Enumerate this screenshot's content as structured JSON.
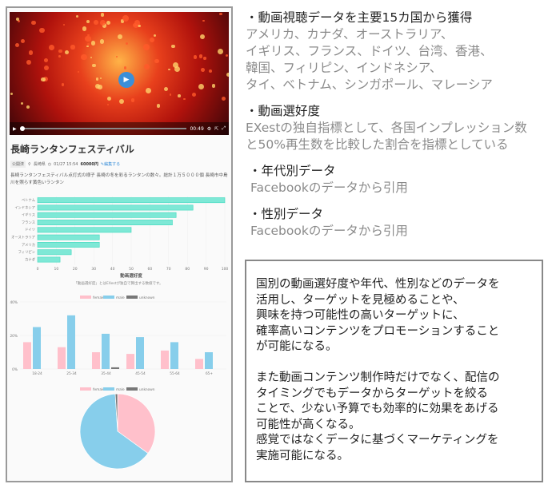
{
  "video": {
    "time": "00:49",
    "play_icon": "play-icon",
    "settings_icon": "gear-icon",
    "share_icon": "external-link-icon",
    "fullscreen_icon": "fullscreen-icon"
  },
  "post": {
    "title": "長崎ランタンフェスティバル",
    "status": "公開済",
    "location": "長崎県",
    "datetime": "01/27 15:54",
    "price": "60000円",
    "edit": "編集する",
    "description": "長崎ランタンフェスティバル点灯式の様子 長崎の冬を彩るランタンの数々。総計１万５０００個 長崎市中島川を照らす黄色いランタン"
  },
  "colors": {
    "preference": "#7ee8d6",
    "female": "#ffc0cb",
    "male": "#87ceeb",
    "unknown": "#777777"
  },
  "chart_data": [
    {
      "type": "bar",
      "orientation": "horizontal",
      "categories": [
        "ベトナム",
        "インドネシア",
        "イギリス",
        "フランス",
        "ドイツ",
        "オーストラリア",
        "アメリカ",
        "フィリピン",
        "カナダ"
      ],
      "values": [
        100,
        83,
        74,
        72,
        50,
        33,
        33,
        18,
        12
      ],
      "xlabel": "動画選好度",
      "xlim": [
        0,
        100
      ],
      "xticks": [
        0,
        10,
        20,
        30,
        40,
        50,
        60,
        70,
        80,
        90,
        100
      ],
      "note": "「動画選好度」とはEXestが独自で算出する数値です。"
    },
    {
      "type": "bar",
      "categories": [
        "18-24",
        "25-34",
        "35-44",
        "45-54",
        "55-64",
        "65+"
      ],
      "series": [
        {
          "name": "female",
          "values": [
            16,
            13,
            10,
            9,
            11,
            6
          ]
        },
        {
          "name": "male",
          "values": [
            25,
            32,
            21,
            19,
            16,
            10
          ]
        },
        {
          "name": "unknown",
          "values": [
            0,
            0,
            1,
            0,
            0,
            0
          ]
        }
      ],
      "ylim": [
        0,
        40
      ],
      "yticks": [
        "0%",
        "20%",
        "40%"
      ],
      "legend": "top"
    },
    {
      "type": "pie",
      "labels": [
        "female",
        "male",
        "unknown"
      ],
      "values": [
        35,
        64,
        1
      ],
      "legend": "top"
    }
  ],
  "right": {
    "h1": "・動画視聴データを主要15カ国から獲得",
    "countries": [
      "アメリカ、カナダ、オーストラリア、",
      "イギリス、フランス、ドイツ、台湾、香港、",
      "韓国、フィリピン、インドネシア、",
      "タイ、ベトナム、シンガポール、マレーシア"
    ],
    "h2": "・動画選好度",
    "pref": [
      "EXestの独自指標として、各国インプレッション数",
      "と50%再生数を比較した割合を指標としている"
    ],
    "h3": "・年代別データ",
    "age": "Facebookのデータから引用",
    "h4": "・性別データ",
    "gender": "Facebookのデータから引用"
  },
  "box": {
    "lines": [
      "国別の動画選好度や年代、性別などのデータを",
      "活用し、ターゲットを見極めることや、",
      "興味を持つ可能性の高いターゲットに、",
      "確率高いコンテンツをプロモーションすること",
      "が可能になる。",
      "",
      "また動画コンテンツ制作時だけでなく、配信の",
      "タイミングでもデータからターゲットを絞る",
      "ことで、少ない予算でも効率的に効果をあげる",
      "可能性が高くなる。",
      "感覚ではなくデータに基づくマーケティングを",
      "実施可能になる。"
    ]
  }
}
